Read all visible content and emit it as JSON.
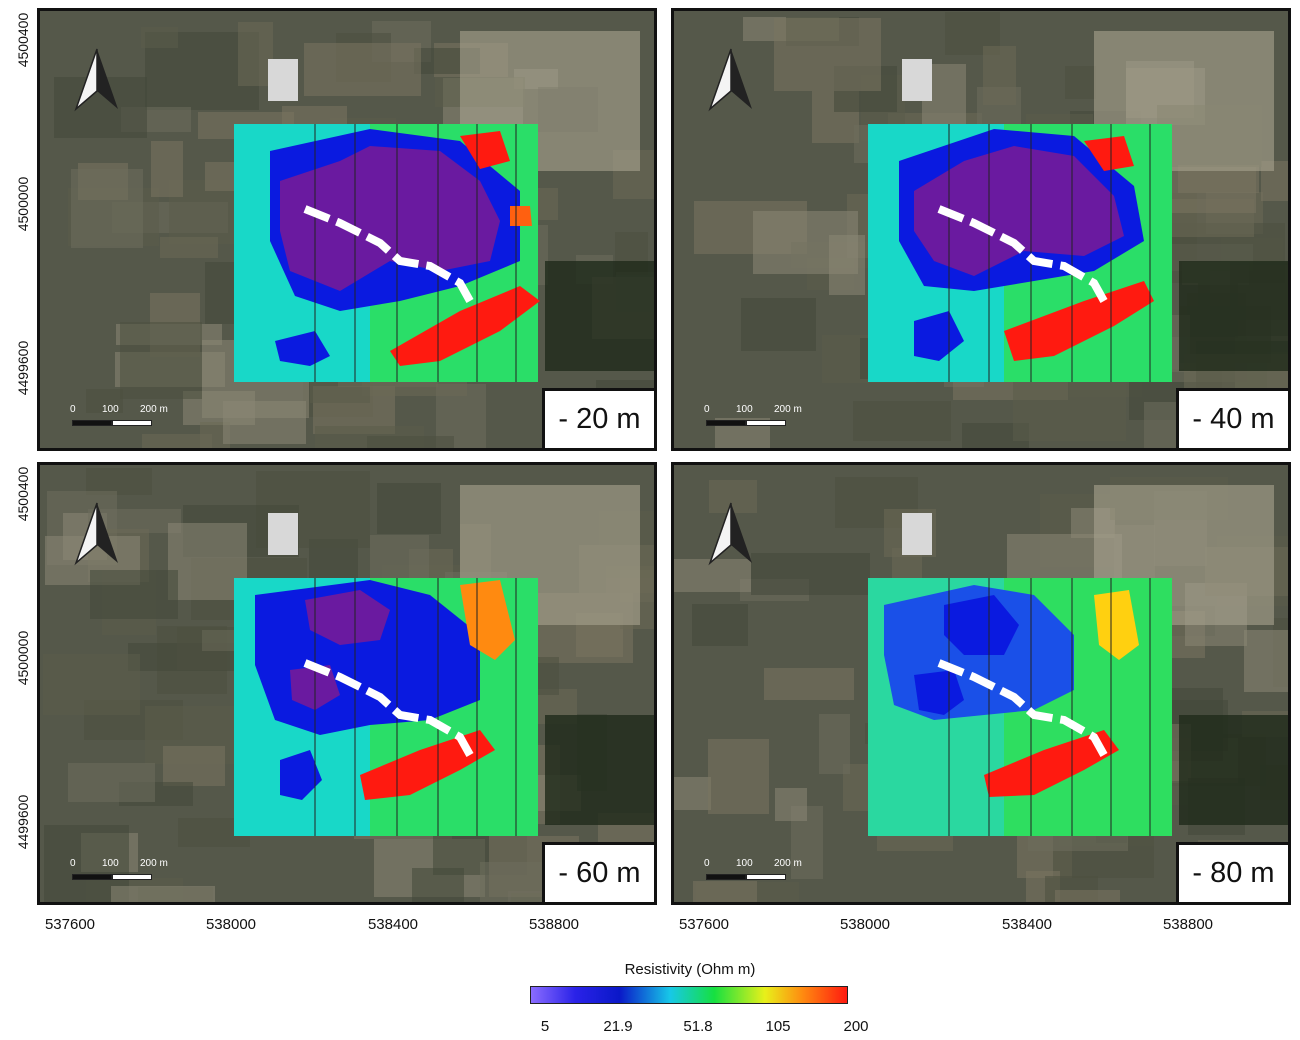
{
  "panels": [
    {
      "depth": "- 20 m"
    },
    {
      "depth": "- 40 m"
    },
    {
      "depth": "- 60 m"
    },
    {
      "depth": "- 80 m"
    }
  ],
  "scalebar": {
    "t0": "0",
    "t1": "100",
    "t2": "200 m"
  },
  "y_ticks": [
    "4500400",
    "4500000",
    "4499600"
  ],
  "x_ticks": [
    "537600",
    "538000",
    "538400",
    "538800"
  ],
  "colorbar": {
    "title": "Resistivity (Ohm m)",
    "ticks": [
      "5",
      "21.9",
      "51.8",
      "105",
      "200"
    ]
  },
  "colors": {
    "low": "#6a1aa0",
    "mid_low": "#1a2ae0",
    "mid": "#18e048",
    "high": "#ff1a10"
  }
}
